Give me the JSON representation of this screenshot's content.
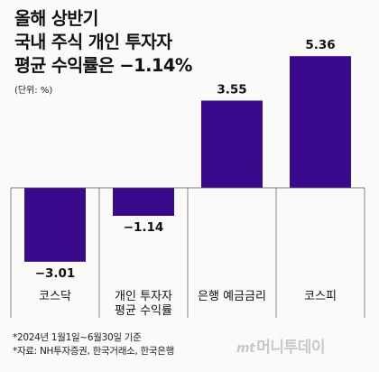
{
  "title_lines": [
    "올해 상반기",
    "국내 주식 개인 투자자",
    "평균 수익률은 −1.14%"
  ],
  "unit": "(단위: %)",
  "footnote": "*2024년 1월1일~6월30일 기준",
  "source": "*자료: NH투자증권, 한국거래소, 한국은행",
  "watermark": {
    "mark": "mt",
    "name": "머니투데이"
  },
  "colors": {
    "bar": "#3a0a8c",
    "axis": "#555555",
    "text": "#111111"
  },
  "chart_data": {
    "type": "bar",
    "categories": [
      [
        "코스닥"
      ],
      [
        "개인 투자자",
        "평균 수익률"
      ],
      [
        "은행 예금금리"
      ],
      [
        "코스피"
      ]
    ],
    "values": [
      -3.01,
      -1.14,
      3.55,
      5.36
    ],
    "value_labels": [
      "−3.01",
      "−1.14",
      "3.55",
      "5.36"
    ],
    "title": "올해 상반기 국내 주식 개인 투자자 평균 수익률은 −1.14%",
    "ylabel": "%",
    "ylim": [
      -3.5,
      5.5
    ],
    "grid": false,
    "legend": "none"
  }
}
